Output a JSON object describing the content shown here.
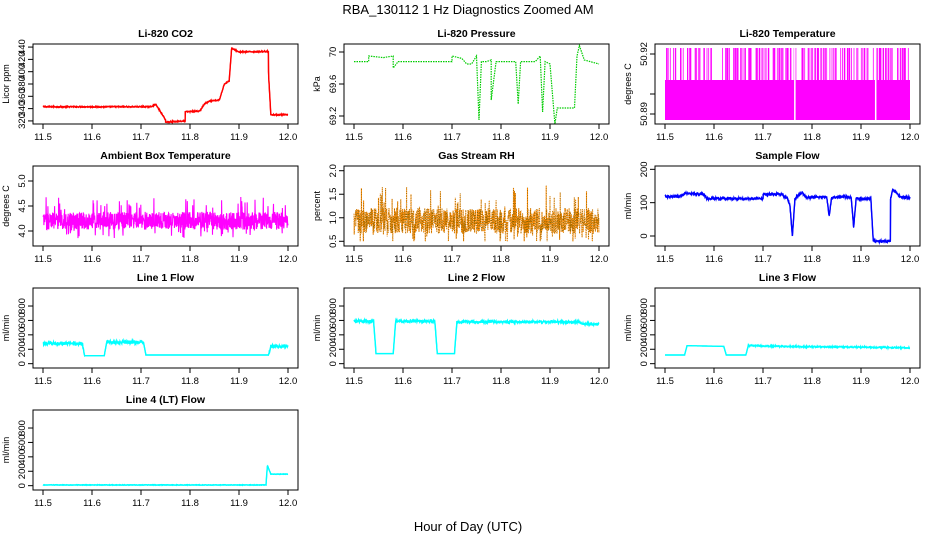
{
  "figure": {
    "title": "RBA_130112  1 Hz Diagnostics Zoomed AM",
    "xlabel": "Hour of Day (UTC)"
  },
  "chart_data": [
    {
      "type": "line",
      "title": "Li-820 CO2",
      "ylabel": "Licor ppm",
      "color": "#ff0000",
      "xlim": [
        11.5,
        12.0
      ],
      "xticks": [
        "11.5",
        "11.6",
        "11.7",
        "11.8",
        "11.9",
        "12.0"
      ],
      "ylim": [
        315,
        445
      ],
      "yticks": [
        320,
        340,
        360,
        380,
        400,
        420,
        440
      ],
      "pattern": "steps",
      "noise": 1,
      "points": [
        [
          11.5,
          343
        ],
        [
          11.72,
          343
        ],
        [
          11.73,
          347
        ],
        [
          11.75,
          322
        ],
        [
          11.75,
          318
        ],
        [
          11.79,
          320
        ],
        [
          11.79,
          335
        ],
        [
          11.82,
          336
        ],
        [
          11.83,
          348
        ],
        [
          11.84,
          352
        ],
        [
          11.86,
          354
        ],
        [
          11.87,
          380
        ],
        [
          11.88,
          385
        ],
        [
          11.885,
          438
        ],
        [
          11.9,
          432
        ],
        [
          11.96,
          433
        ],
        [
          11.96,
          400
        ],
        [
          11.965,
          330
        ],
        [
          12.0,
          330
        ]
      ]
    },
    {
      "type": "line",
      "title": "Li-820 Pressure",
      "ylabel": "kPa",
      "color": "#00cc00",
      "xlim": [
        11.5,
        12.0
      ],
      "xticks": [
        "11.5",
        "11.6",
        "11.7",
        "11.8",
        "11.9",
        "12.0"
      ],
      "ylim": [
        69.1,
        70.1
      ],
      "yticks": [
        69.2,
        69.6,
        70.0
      ],
      "pattern": "spikes",
      "noise": 0.005,
      "points": [
        [
          11.5,
          69.88
        ],
        [
          11.53,
          69.88
        ],
        [
          11.53,
          69.95
        ],
        [
          11.56,
          69.93
        ],
        [
          11.58,
          69.95
        ],
        [
          11.58,
          69.8
        ],
        [
          11.59,
          69.88
        ],
        [
          11.7,
          69.88
        ],
        [
          11.7,
          69.95
        ],
        [
          11.72,
          69.92
        ],
        [
          11.73,
          69.85
        ],
        [
          11.74,
          69.85
        ],
        [
          11.75,
          69.95
        ],
        [
          11.755,
          69.15
        ],
        [
          11.76,
          69.88
        ],
        [
          11.77,
          69.88
        ],
        [
          11.78,
          69.9
        ],
        [
          11.78,
          69.4
        ],
        [
          11.79,
          69.88
        ],
        [
          11.83,
          69.88
        ],
        [
          11.835,
          69.35
        ],
        [
          11.84,
          69.88
        ],
        [
          11.87,
          69.88
        ],
        [
          11.88,
          69.95
        ],
        [
          11.885,
          69.25
        ],
        [
          11.89,
          69.88
        ],
        [
          11.9,
          69.85
        ],
        [
          11.91,
          69.1
        ],
        [
          11.915,
          69.3
        ],
        [
          11.95,
          69.3
        ],
        [
          11.955,
          69.95
        ],
        [
          11.96,
          70.08
        ],
        [
          11.97,
          69.9
        ],
        [
          12.0,
          69.85
        ]
      ]
    },
    {
      "type": "line",
      "title": "Li-820 Temperature",
      "ylabel": "degrees C",
      "color": "#ff00ff",
      "xlim": [
        11.5,
        12.0
      ],
      "xticks": [
        "11.5",
        "11.6",
        "11.7",
        "11.8",
        "11.9",
        "12.0"
      ],
      "ylim": [
        50.885,
        50.925
      ],
      "yticks": [
        50.89,
        50.92
      ],
      "ytick_labels": [
        "50.89",
        "50.92"
      ],
      "yticks_minor": [
        50.9
      ],
      "pattern": "binary",
      "levels": [
        50.887,
        50.907,
        50.923
      ],
      "density": 0.25
    },
    {
      "type": "line",
      "title": "Ambient Box Temperature",
      "ylabel": "degrees C",
      "color": "#ff00ff",
      "xlim": [
        11.5,
        12.0
      ],
      "xticks": [
        "11.5",
        "11.6",
        "11.7",
        "11.8",
        "11.9",
        "12.0"
      ],
      "ylim": [
        3.7,
        5.3
      ],
      "yticks": [
        4.0,
        4.5,
        5.0
      ],
      "ytick_labels": [
        "4.0",
        "4.5",
        "5.0"
      ],
      "pattern": "noise",
      "base": 4.15,
      "spread": 0.35,
      "max": 5.2,
      "min": 3.8
    },
    {
      "type": "line",
      "title": "Gas Stream RH",
      "ylabel": "percent",
      "color": "#ff8800",
      "xlim": [
        11.5,
        12.0
      ],
      "xticks": [
        "11.5",
        "11.6",
        "11.7",
        "11.8",
        "11.9",
        "12.0"
      ],
      "ylim": [
        0.4,
        2.1
      ],
      "yticks": [
        0.5,
        1.0,
        1.5,
        2.0
      ],
      "ytick_labels": [
        "0.5",
        "1.0",
        "1.5",
        "2.0"
      ],
      "pattern": "noise",
      "base": 0.85,
      "spread": 0.55,
      "max": 2.05,
      "min": 0.5,
      "dotted": true
    },
    {
      "type": "line",
      "title": "Sample Flow",
      "ylabel": "ml/min",
      "color": "#0000ff",
      "xlim": [
        11.5,
        12.0
      ],
      "xticks": [
        "11.5",
        "11.6",
        "11.7",
        "11.8",
        "11.9",
        "12.0"
      ],
      "ylim": [
        -30,
        210
      ],
      "yticks": [
        0,
        100,
        200
      ],
      "pattern": "steps",
      "noise": 4,
      "points": [
        [
          11.5,
          118
        ],
        [
          11.53,
          118
        ],
        [
          11.54,
          128
        ],
        [
          11.58,
          125
        ],
        [
          11.585,
          112
        ],
        [
          11.7,
          112
        ],
        [
          11.7,
          125
        ],
        [
          11.74,
          125
        ],
        [
          11.745,
          115
        ],
        [
          11.75,
          115
        ],
        [
          11.755,
          90
        ],
        [
          11.76,
          0
        ],
        [
          11.765,
          110
        ],
        [
          11.77,
          120
        ],
        [
          11.78,
          130
        ],
        [
          11.79,
          115
        ],
        [
          11.83,
          118
        ],
        [
          11.835,
          60
        ],
        [
          11.84,
          115
        ],
        [
          11.87,
          118
        ],
        [
          11.88,
          115
        ],
        [
          11.885,
          25
        ],
        [
          11.89,
          112
        ],
        [
          11.92,
          112
        ],
        [
          11.925,
          -15
        ],
        [
          11.96,
          -15
        ],
        [
          11.96,
          110
        ],
        [
          11.965,
          140
        ],
        [
          11.98,
          118
        ],
        [
          12.0,
          115
        ]
      ]
    },
    {
      "type": "line",
      "title": "Line 1 Flow",
      "ylabel": "ml/min",
      "color": "#00ffff",
      "xlim": [
        11.5,
        12.0
      ],
      "xticks": [
        "11.5",
        "11.6",
        "11.7",
        "11.8",
        "11.9",
        "12.0"
      ],
      "ylim": [
        -60,
        1050
      ],
      "yticks": [
        0,
        200,
        400,
        600,
        800
      ],
      "pattern": "steps",
      "noise": 25,
      "points": [
        [
          11.5,
          280
        ],
        [
          11.58,
          280
        ],
        [
          11.585,
          110
        ],
        [
          11.625,
          110
        ],
        [
          11.63,
          300
        ],
        [
          11.705,
          300
        ],
        [
          11.71,
          120
        ],
        [
          11.96,
          120
        ],
        [
          11.965,
          240
        ],
        [
          12.0,
          240
        ]
      ],
      "noise_ranges": [
        [
          11.5,
          11.585
        ],
        [
          11.63,
          11.705
        ],
        [
          11.96,
          12.0
        ]
      ]
    },
    {
      "type": "line",
      "title": "Line 2 Flow",
      "ylabel": "ml/min",
      "color": "#00ffff",
      "xlim": [
        11.5,
        12.0
      ],
      "xticks": [
        "11.5",
        "11.6",
        "11.7",
        "11.8",
        "11.9",
        "12.0"
      ],
      "ylim": [
        -60,
        1050
      ],
      "yticks": [
        0,
        200,
        400,
        600,
        800
      ],
      "pattern": "steps",
      "noise": 20,
      "points": [
        [
          11.5,
          590
        ],
        [
          11.54,
          590
        ],
        [
          11.545,
          140
        ],
        [
          11.58,
          140
        ],
        [
          11.585,
          590
        ],
        [
          11.665,
          590
        ],
        [
          11.67,
          140
        ],
        [
          11.705,
          140
        ],
        [
          11.71,
          580
        ],
        [
          11.96,
          580
        ],
        [
          11.965,
          550
        ],
        [
          12.0,
          550
        ]
      ],
      "noise_ranges": [
        [
          11.5,
          11.54
        ],
        [
          11.585,
          11.665
        ],
        [
          11.71,
          12.0
        ]
      ]
    },
    {
      "type": "line",
      "title": "Line 3 Flow",
      "ylabel": "ml/min",
      "color": "#00ffff",
      "xlim": [
        11.5,
        12.0
      ],
      "xticks": [
        "11.5",
        "11.6",
        "11.7",
        "11.8",
        "11.9",
        "12.0"
      ],
      "ylim": [
        -60,
        1050
      ],
      "yticks": [
        0,
        200,
        400,
        600,
        800
      ],
      "pattern": "steps",
      "noise": 10,
      "points": [
        [
          11.5,
          120
        ],
        [
          11.54,
          120
        ],
        [
          11.545,
          250
        ],
        [
          11.62,
          240
        ],
        [
          11.625,
          120
        ],
        [
          11.665,
          120
        ],
        [
          11.67,
          250
        ],
        [
          11.7,
          245
        ],
        [
          11.8,
          235
        ],
        [
          11.9,
          230
        ],
        [
          12.0,
          220
        ]
      ],
      "noise_ranges": [
        [
          11.67,
          12.0
        ]
      ]
    },
    {
      "type": "line",
      "title": "Line 4 (LT) Flow",
      "ylabel": "ml/min",
      "color": "#00ffff",
      "xlim": [
        11.5,
        12.0
      ],
      "xticks": [
        "11.5",
        "11.6",
        "11.7",
        "11.8",
        "11.9",
        "12.0"
      ],
      "ylim": [
        -60,
        1050
      ],
      "yticks": [
        0,
        200,
        400,
        600,
        800
      ],
      "pattern": "steps",
      "noise": 4,
      "points": [
        [
          11.5,
          10
        ],
        [
          11.955,
          10
        ],
        [
          11.958,
          280
        ],
        [
          11.965,
          160
        ],
        [
          12.0,
          160
        ]
      ]
    }
  ]
}
